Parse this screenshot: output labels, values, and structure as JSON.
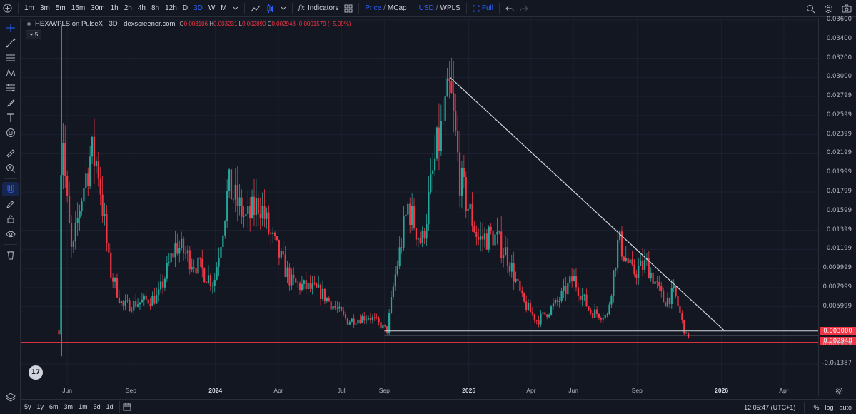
{
  "toolbar": {
    "intervals": [
      "1m",
      "3m",
      "5m",
      "15m",
      "30m",
      "1h",
      "2h",
      "4h",
      "8h",
      "12h",
      "D",
      "3D",
      "W",
      "M"
    ],
    "active_interval": "3D",
    "indicators_label": "Indicators",
    "price_label": "Price",
    "mcap_label": "MCap",
    "slash": "/",
    "usd_label": "USD",
    "wpls_label": "WPLS",
    "full_label": "Full"
  },
  "legend": {
    "symbol": "HEX/WPLS on PulseX · 3D · dexscreener.com",
    "o_label": "O",
    "o": "0.003106",
    "h_label": "H",
    "h": "0.003231",
    "l_label": "L",
    "l": "0.002890",
    "c_label": "C",
    "c": "0.002948",
    "change": "-0.0001579 (−5.09%)",
    "collapse_value": "5"
  },
  "price_axis": {
    "labels": [
      "0.03600",
      "0.03400",
      "0.03200",
      "0.03000",
      "0.02799",
      "0.02599",
      "0.02399",
      "0.02199",
      "0.01999",
      "0.01799",
      "0.01599",
      "0.01399",
      "0.01199",
      "0.009999",
      "0.007999",
      "0.005999",
      "0.001999",
      "-0.0₅1387"
    ],
    "tag_level": "0.003000",
    "tag_price": "0.002948"
  },
  "time_axis": {
    "labels": [
      "Jun",
      "Sep",
      "2024",
      "Apr",
      "Jul",
      "Sep",
      "2025",
      "Apr",
      "Jun",
      "Sep",
      "2026",
      "Apr"
    ],
    "strong": [
      "2024",
      "2025",
      "2026"
    ]
  },
  "bottom": {
    "ranges": [
      "5y",
      "1y",
      "6m",
      "3m",
      "1m",
      "5d",
      "1d"
    ],
    "clock": "12:05:47 (UTC+1)",
    "percent": "%",
    "log": "log",
    "auto": "auto"
  },
  "logo_text": "17",
  "colors": {
    "up": "#26a69a",
    "down": "#f23645",
    "accent": "#2962ff",
    "background": "#131722"
  },
  "chart_data": {
    "type": "candlestick",
    "title": "HEX/WPLS on PulseX · 3D · dexscreener.com",
    "xlabel": "",
    "ylabel": "",
    "ylim": [
      0,
      0.036
    ],
    "series_approx_close": [
      {
        "date": "2023-05-20",
        "close": 0.0035
      },
      {
        "date": "2023-05-24",
        "close": 0.027
      },
      {
        "date": "2023-05-30",
        "close": 0.018
      },
      {
        "date": "2023-06-08",
        "close": 0.011
      },
      {
        "date": "2023-06-20",
        "close": 0.017
      },
      {
        "date": "2023-07-05",
        "close": 0.022
      },
      {
        "date": "2023-07-15",
        "close": 0.021
      },
      {
        "date": "2023-08-01",
        "close": 0.01
      },
      {
        "date": "2023-08-20",
        "close": 0.006
      },
      {
        "date": "2023-09-15",
        "close": 0.0065
      },
      {
        "date": "2023-10-10",
        "close": 0.007
      },
      {
        "date": "2023-11-05",
        "close": 0.0125
      },
      {
        "date": "2023-12-10",
        "close": 0.01
      },
      {
        "date": "2023-12-30",
        "close": 0.0085
      },
      {
        "date": "2024-01-20",
        "close": 0.0185
      },
      {
        "date": "2024-02-15",
        "close": 0.015
      },
      {
        "date": "2024-03-05",
        "close": 0.017
      },
      {
        "date": "2024-03-20",
        "close": 0.0135
      },
      {
        "date": "2024-04-20",
        "close": 0.0085
      },
      {
        "date": "2024-06-01",
        "close": 0.0075
      },
      {
        "date": "2024-07-10",
        "close": 0.0045
      },
      {
        "date": "2024-08-10",
        "close": 0.005
      },
      {
        "date": "2024-09-05",
        "close": 0.0035
      },
      {
        "date": "2024-09-15",
        "close": 0.0085
      },
      {
        "date": "2024-10-05",
        "close": 0.0165
      },
      {
        "date": "2024-10-25",
        "close": 0.0125
      },
      {
        "date": "2024-11-15",
        "close": 0.022
      },
      {
        "date": "2024-12-05",
        "close": 0.0285
      },
      {
        "date": "2024-12-20",
        "close": 0.019
      },
      {
        "date": "2025-01-15",
        "close": 0.013
      },
      {
        "date": "2025-02-05",
        "close": 0.0135
      },
      {
        "date": "2025-02-25",
        "close": 0.0115
      },
      {
        "date": "2025-03-20",
        "close": 0.0065
      },
      {
        "date": "2025-04-10",
        "close": 0.0045
      },
      {
        "date": "2025-05-10",
        "close": 0.0065
      },
      {
        "date": "2025-06-01",
        "close": 0.009
      },
      {
        "date": "2025-06-25",
        "close": 0.0055
      },
      {
        "date": "2025-07-20",
        "close": 0.005
      },
      {
        "date": "2025-08-05",
        "close": 0.013
      },
      {
        "date": "2025-08-25",
        "close": 0.0095
      },
      {
        "date": "2025-09-15",
        "close": 0.0105
      },
      {
        "date": "2025-10-10",
        "close": 0.0065
      },
      {
        "date": "2025-10-25",
        "close": 0.0075
      },
      {
        "date": "2025-11-10",
        "close": 0.003
      },
      {
        "date": "2025-11-14",
        "close": 0.002948
      }
    ],
    "trendline": {
      "from": {
        "date": "2024-12-05",
        "price": 0.03
      },
      "to": {
        "date": "2026-01-05",
        "price": 0.0035
      }
    },
    "horizontal_lines": [
      0.003,
      0.002948
    ]
  }
}
